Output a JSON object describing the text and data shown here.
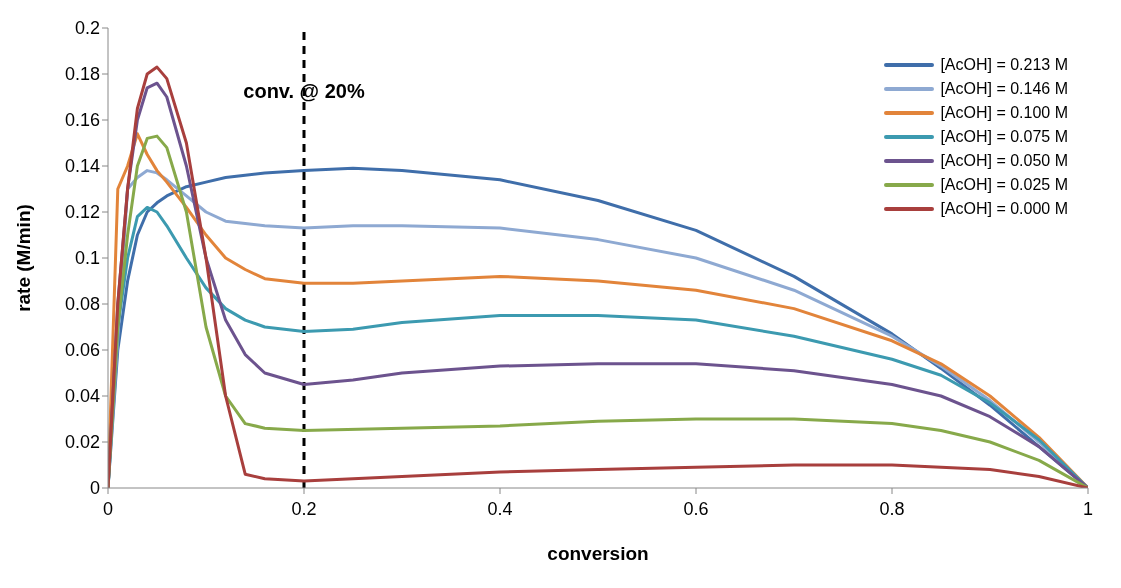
{
  "chart_data": {
    "type": "line",
    "xlabel": "conversion",
    "ylabel": "rate (M/min)",
    "xlim": [
      0,
      1
    ],
    "xticks": [
      0,
      0.2,
      0.4,
      0.6,
      0.8,
      1
    ],
    "ylim": [
      0,
      0.2
    ],
    "yticks": [
      0,
      0.02,
      0.04,
      0.06,
      0.08,
      0.1,
      0.12,
      0.14,
      0.16,
      0.18,
      0.2
    ],
    "grid": false,
    "legend": "top right",
    "marker": "none",
    "line_style": "solid",
    "ref_lines": [
      {
        "axis": "x",
        "value": 0.2,
        "label": "conv. @ 20%",
        "color": "#000000",
        "line_style": "dashed"
      }
    ],
    "series": [
      {
        "name": "[AcOH] = 0.213 M",
        "color": "#3f6eaa",
        "x": [
          0,
          0.01,
          0.02,
          0.03,
          0.04,
          0.05,
          0.06,
          0.08,
          0.1,
          0.12,
          0.14,
          0.16,
          0.2,
          0.25,
          0.3,
          0.4,
          0.5,
          0.6,
          0.7,
          0.8,
          0.85,
          0.9,
          0.95,
          1
        ],
        "values": [
          0,
          0.06,
          0.09,
          0.11,
          0.12,
          0.124,
          0.127,
          0.131,
          0.133,
          0.135,
          0.136,
          0.137,
          0.138,
          0.139,
          0.138,
          0.134,
          0.125,
          0.112,
          0.092,
          0.067,
          0.052,
          0.036,
          0.018,
          0
        ]
      },
      {
        "name": "[AcOH] = 0.146 M",
        "color": "#8ea9d2",
        "x": [
          0,
          0.02,
          0.03,
          0.04,
          0.05,
          0.06,
          0.08,
          0.1,
          0.12,
          0.14,
          0.16,
          0.2,
          0.25,
          0.3,
          0.4,
          0.5,
          0.6,
          0.7,
          0.8,
          0.85,
          0.9,
          0.95,
          1
        ],
        "values": [
          0,
          0.13,
          0.135,
          0.138,
          0.137,
          0.134,
          0.127,
          0.12,
          0.116,
          0.115,
          0.114,
          0.113,
          0.114,
          0.114,
          0.113,
          0.108,
          0.1,
          0.086,
          0.066,
          0.053,
          0.038,
          0.02,
          0
        ]
      },
      {
        "name": "[AcOH] = 0.100 M",
        "color": "#e2843a",
        "x": [
          0,
          0.01,
          0.02,
          0.03,
          0.04,
          0.05,
          0.06,
          0.08,
          0.1,
          0.12,
          0.14,
          0.16,
          0.2,
          0.25,
          0.3,
          0.4,
          0.5,
          0.6,
          0.7,
          0.8,
          0.85,
          0.9,
          0.95,
          1
        ],
        "values": [
          0,
          0.13,
          0.14,
          0.154,
          0.145,
          0.138,
          0.133,
          0.122,
          0.11,
          0.1,
          0.095,
          0.091,
          0.089,
          0.089,
          0.09,
          0.092,
          0.09,
          0.086,
          0.078,
          0.064,
          0.054,
          0.04,
          0.022,
          0
        ]
      },
      {
        "name": "[AcOH] = 0.075 M",
        "color": "#3c9ab0",
        "x": [
          0,
          0.01,
          0.02,
          0.03,
          0.04,
          0.05,
          0.06,
          0.08,
          0.1,
          0.12,
          0.14,
          0.16,
          0.2,
          0.25,
          0.3,
          0.4,
          0.5,
          0.6,
          0.7,
          0.8,
          0.85,
          0.9,
          0.95,
          1
        ],
        "values": [
          0,
          0.07,
          0.1,
          0.118,
          0.122,
          0.12,
          0.114,
          0.1,
          0.087,
          0.078,
          0.073,
          0.07,
          0.068,
          0.069,
          0.072,
          0.075,
          0.075,
          0.073,
          0.066,
          0.056,
          0.049,
          0.037,
          0.021,
          0
        ]
      },
      {
        "name": "[AcOH] = 0.050 M",
        "color": "#6c538e",
        "x": [
          0,
          0.01,
          0.02,
          0.03,
          0.04,
          0.05,
          0.06,
          0.08,
          0.1,
          0.12,
          0.14,
          0.16,
          0.2,
          0.25,
          0.3,
          0.4,
          0.5,
          0.6,
          0.7,
          0.8,
          0.85,
          0.9,
          0.95,
          1
        ],
        "values": [
          0,
          0.08,
          0.13,
          0.16,
          0.174,
          0.176,
          0.17,
          0.14,
          0.1,
          0.073,
          0.058,
          0.05,
          0.045,
          0.047,
          0.05,
          0.053,
          0.054,
          0.054,
          0.051,
          0.045,
          0.04,
          0.031,
          0.018,
          0
        ]
      },
      {
        "name": "[AcOH] = 0.025 M",
        "color": "#87a94a",
        "x": [
          0,
          0.01,
          0.02,
          0.03,
          0.04,
          0.05,
          0.06,
          0.08,
          0.1,
          0.12,
          0.14,
          0.16,
          0.2,
          0.3,
          0.4,
          0.5,
          0.6,
          0.7,
          0.8,
          0.85,
          0.9,
          0.95,
          1
        ],
        "values": [
          0,
          0.07,
          0.11,
          0.14,
          0.152,
          0.153,
          0.148,
          0.12,
          0.07,
          0.04,
          0.028,
          0.026,
          0.025,
          0.026,
          0.027,
          0.029,
          0.03,
          0.03,
          0.028,
          0.025,
          0.02,
          0.012,
          0
        ]
      },
      {
        "name": "[AcOH] = 0.000 M",
        "color": "#a83f3d",
        "x": [
          0,
          0.01,
          0.02,
          0.03,
          0.04,
          0.05,
          0.06,
          0.08,
          0.1,
          0.12,
          0.14,
          0.16,
          0.2,
          0.3,
          0.4,
          0.5,
          0.6,
          0.7,
          0.8,
          0.85,
          0.9,
          0.95,
          1
        ],
        "values": [
          0,
          0.08,
          0.13,
          0.165,
          0.18,
          0.183,
          0.178,
          0.15,
          0.1,
          0.04,
          0.006,
          0.004,
          0.003,
          0.005,
          0.007,
          0.008,
          0.009,
          0.01,
          0.01,
          0.009,
          0.008,
          0.005,
          0
        ]
      }
    ]
  }
}
